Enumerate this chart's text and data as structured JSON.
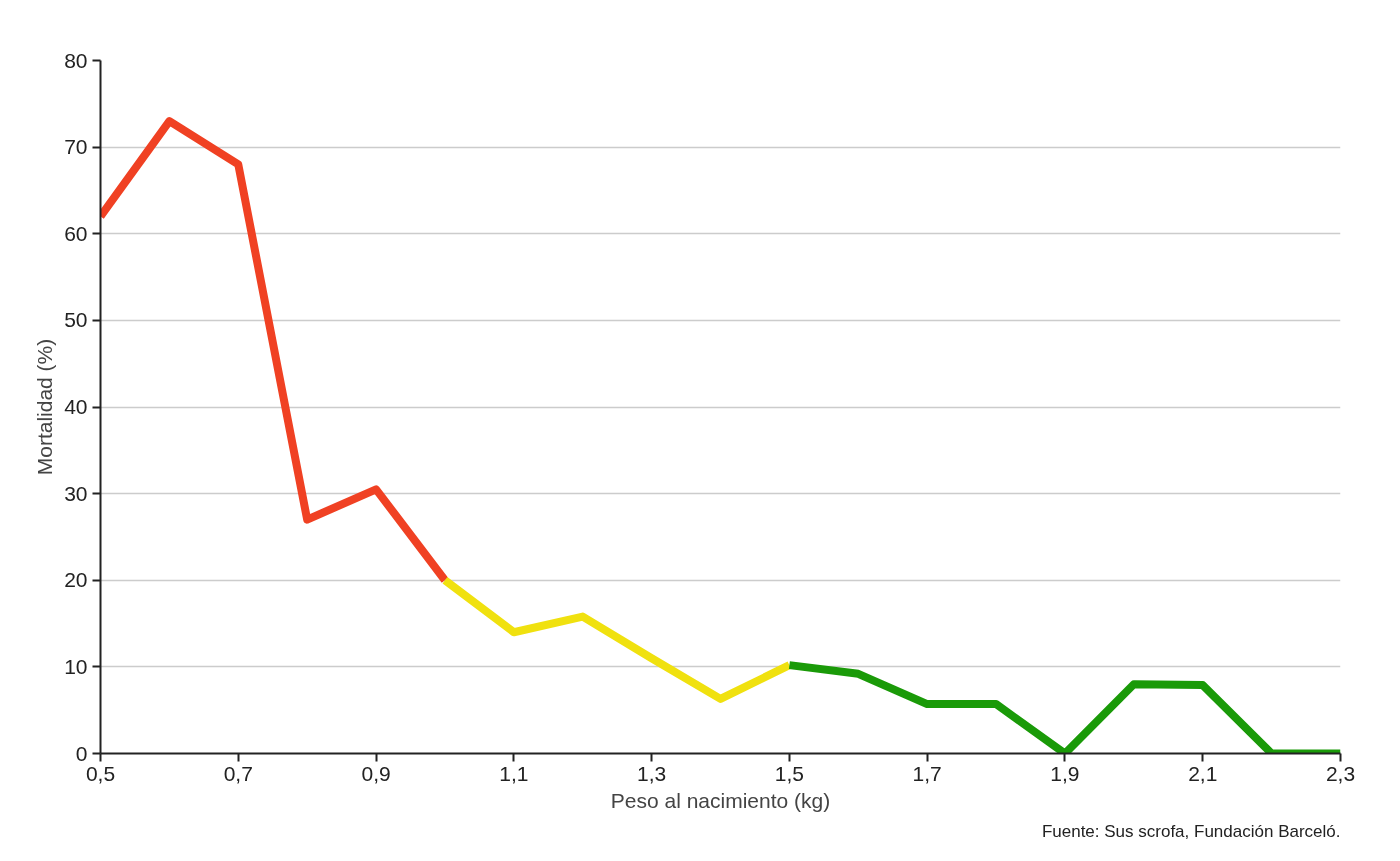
{
  "chart_data": {
    "type": "line",
    "xlabel": "Peso al nacimiento (kg)",
    "ylabel": "Mortalidad (%)",
    "series": [
      {
        "color": "#f04123",
        "x": [
          0.5,
          0.6,
          0.7,
          0.8,
          0.9,
          1.0
        ],
        "values": [
          62,
          73,
          68,
          27,
          30.5,
          20
        ]
      },
      {
        "color": "#f0e10f",
        "x": [
          1.0,
          1.1,
          1.2,
          1.3,
          1.4,
          1.5
        ],
        "values": [
          20,
          14,
          15.8,
          11,
          6.3,
          10.2
        ]
      },
      {
        "color": "#1a9a08",
        "x": [
          1.5,
          1.6,
          1.7,
          1.8,
          1.9,
          2.0,
          2.1,
          2.2,
          2.3
        ],
        "values": [
          10.2,
          9.2,
          5.7,
          5.7,
          0,
          8,
          7.9,
          0,
          0
        ]
      }
    ],
    "xlim": [
      0.5,
      2.3
    ],
    "ylim": [
      0,
      80
    ],
    "xticks": [
      {
        "value": 0.5,
        "label": "0,5"
      },
      {
        "value": 0.7,
        "label": "0,7"
      },
      {
        "value": 0.9,
        "label": "0,9"
      },
      {
        "value": 1.1,
        "label": "1,1"
      },
      {
        "value": 1.3,
        "label": "1,3"
      },
      {
        "value": 1.5,
        "label": "1,5"
      },
      {
        "value": 1.7,
        "label": "1,7"
      },
      {
        "value": 1.9,
        "label": "1,9"
      },
      {
        "value": 2.1,
        "label": "2,1"
      },
      {
        "value": 2.3,
        "label": "2,3"
      }
    ],
    "yticks": [
      0,
      10,
      20,
      30,
      40,
      50,
      60,
      70,
      80
    ],
    "grid": "y",
    "line_style": "solid",
    "marker": "none",
    "annotations": [
      "Fuente: Sus scrofa, Fundación Barceló."
    ]
  }
}
